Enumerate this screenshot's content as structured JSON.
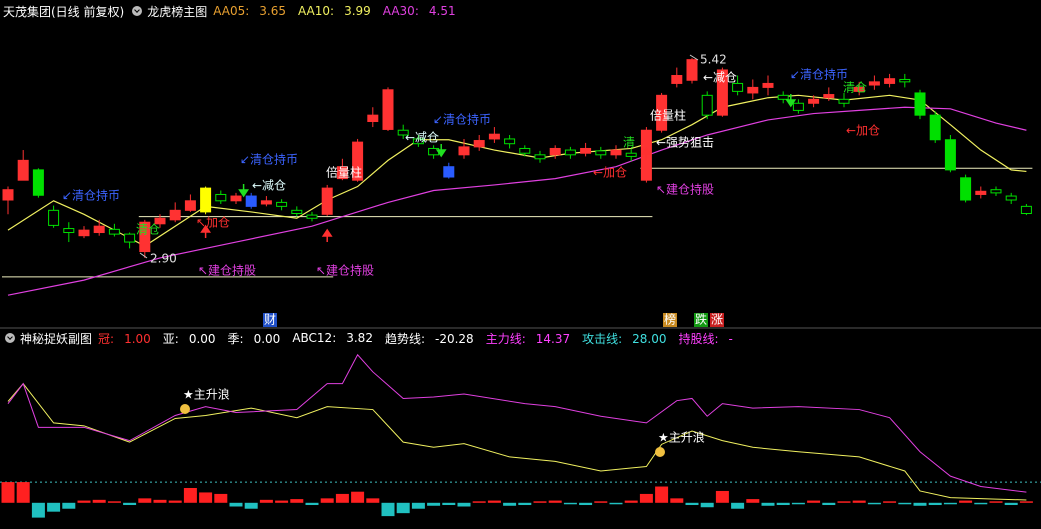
{
  "header": {
    "stock": "天茂集团(日线 前复权)"
  },
  "chart_data": [
    {
      "type": "candlestick",
      "title": "龙虎榜主图",
      "open": [
        3.63,
        3.88,
        4.01,
        3.5,
        3.27,
        3.18,
        3.22,
        3.26,
        3.2,
        2.98,
        3.33,
        3.38,
        3.5,
        3.48,
        3.7,
        3.62,
        3.68,
        3.58,
        3.6,
        3.5,
        3.44,
        3.45,
        3.9,
        3.88,
        4.62,
        4.52,
        4.51,
        4.4,
        4.28,
        4.05,
        4.2,
        4.3,
        4.4,
        4.4,
        4.28,
        4.2,
        4.2,
        4.26,
        4.22,
        4.25,
        4.2,
        4.22,
        3.88,
        4.51,
        5.1,
        5.14,
        4.95,
        4.7,
        5.1,
        4.98,
        5.05,
        4.95,
        4.85,
        4.85,
        4.92,
        4.9,
        5.0,
        5.08,
        5.1,
        5.15,
        4.98,
        4.7,
        4.39,
        3.91,
        3.7,
        3.76,
        3.68,
        3.55
      ],
      "high": [
        3.8,
        4.26,
        4.03,
        3.56,
        3.35,
        3.3,
        3.38,
        3.33,
        3.22,
        3.38,
        3.45,
        3.6,
        3.7,
        3.8,
        3.75,
        3.72,
        3.72,
        3.68,
        3.64,
        3.55,
        3.48,
        3.82,
        4.15,
        4.4,
        4.8,
        5.05,
        4.58,
        4.45,
        4.32,
        4.1,
        4.4,
        4.45,
        4.55,
        4.45,
        4.32,
        4.25,
        4.32,
        4.3,
        4.35,
        4.3,
        4.32,
        4.28,
        4.55,
        4.98,
        5.3,
        5.42,
        5.0,
        5.3,
        5.2,
        5.15,
        5.2,
        5.0,
        4.9,
        4.95,
        5.05,
        4.98,
        5.12,
        5.2,
        5.22,
        5.22,
        5.02,
        4.75,
        4.45,
        3.95,
        3.8,
        3.8,
        3.72,
        3.58
      ],
      "low": [
        3.45,
        3.88,
        3.66,
        3.28,
        3.1,
        3.15,
        3.18,
        3.17,
        3.02,
        2.9,
        3.28,
        3.35,
        3.48,
        3.45,
        3.58,
        3.58,
        3.52,
        3.55,
        3.5,
        3.42,
        3.36,
        3.43,
        3.88,
        3.86,
        4.55,
        4.5,
        4.4,
        4.3,
        4.15,
        3.9,
        4.15,
        4.25,
        4.35,
        4.28,
        4.18,
        4.1,
        4.15,
        4.15,
        4.18,
        4.15,
        4.15,
        4.12,
        3.85,
        4.48,
        5.05,
        5.1,
        4.65,
        4.68,
        4.95,
        4.9,
        4.95,
        4.85,
        4.72,
        4.8,
        4.88,
        4.8,
        4.95,
        5.02,
        5.05,
        5.05,
        4.65,
        4.35,
        3.98,
        3.6,
        3.65,
        3.68,
        3.58,
        3.44
      ],
      "close": [
        3.76,
        4.13,
        3.69,
        3.31,
        3.22,
        3.25,
        3.3,
        3.2,
        3.1,
        3.35,
        3.4,
        3.5,
        3.62,
        3.78,
        3.62,
        3.68,
        3.55,
        3.62,
        3.55,
        3.46,
        3.4,
        3.78,
        4.05,
        4.36,
        4.7,
        5.02,
        4.45,
        4.34,
        4.2,
        3.92,
        4.3,
        4.38,
        4.46,
        4.34,
        4.22,
        4.15,
        4.28,
        4.2,
        4.28,
        4.2,
        4.26,
        4.18,
        4.51,
        4.95,
        5.2,
        5.4,
        4.7,
        5.27,
        5.0,
        5.05,
        5.1,
        4.9,
        4.76,
        4.9,
        4.96,
        4.85,
        5.05,
        5.12,
        5.16,
        5.12,
        4.7,
        4.39,
        4.01,
        3.63,
        3.74,
        3.72,
        3.63,
        3.46
      ],
      "up_color": "#ff3232",
      "down_color": "#00e000",
      "highlights": [
        {
          "index": 13,
          "color": "#ffff00"
        },
        {
          "index": 16,
          "color": "#2a5cff"
        },
        {
          "index": 29,
          "color": "#2a5cff"
        }
      ],
      "ylim": [
        2.18,
        5.9
      ],
      "series": [
        {
          "name": "AA05:",
          "color": "#e8a030",
          "current": 3.65
        },
        {
          "name": "AA10:",
          "color": "#f0f060",
          "current": 3.99,
          "x": [
            0,
            3,
            5,
            9,
            13,
            16,
            19,
            21,
            23,
            25,
            27,
            29,
            32,
            35,
            37,
            41,
            43,
            45,
            47,
            50,
            52,
            55,
            58,
            60,
            62,
            64,
            66,
            67
          ],
          "values": [
            3.25,
            3.62,
            3.45,
            3.05,
            3.55,
            3.48,
            3.4,
            3.63,
            3.8,
            4.13,
            4.39,
            4.39,
            4.26,
            4.16,
            4.22,
            4.28,
            4.39,
            4.58,
            4.8,
            4.92,
            4.95,
            4.89,
            4.95,
            4.89,
            4.58,
            4.26,
            4.01,
            3.99
          ]
        },
        {
          "name": "AA30:",
          "color": "#e040e0",
          "current": 4.51,
          "x": [
            0,
            5,
            10,
            15,
            20,
            25,
            28,
            32,
            36,
            40,
            43,
            46,
            50,
            53,
            56,
            59,
            62,
            65,
            67
          ],
          "values": [
            2.43,
            2.62,
            2.9,
            3.1,
            3.3,
            3.6,
            3.75,
            3.82,
            3.9,
            4.05,
            4.26,
            4.45,
            4.64,
            4.72,
            4.76,
            4.8,
            4.78,
            4.6,
            4.51
          ]
        }
      ],
      "levels": [
        {
          "value": 2.66,
          "from": 0,
          "to": 21
        },
        {
          "value": 3.42,
          "from": 9,
          "to": 42
        },
        {
          "value": 4.03,
          "from": 42,
          "to": 67
        }
      ],
      "level_color": "#f0f0c0",
      "annotations": [
        {
          "text": "↙清仓持币",
          "color": "#3c64ff"
        },
        {
          "text": "↙清仓持币",
          "color": "#3c64ff"
        },
        {
          "text": "↙清仓持币",
          "color": "#3c64ff"
        },
        {
          "text": "↙清仓持币",
          "color": "#3c64ff"
        },
        {
          "text": "清仓",
          "color": "#20e020"
        },
        {
          "text": "清",
          "color": "#20e020"
        },
        {
          "text": "清仓",
          "color": "#20e020"
        },
        {
          "text": "↖加仓",
          "color": "#ff3030"
        },
        {
          "text": "←加仓",
          "color": "#ff3030"
        },
        {
          "text": "←加仓",
          "color": "#ff3030"
        },
        {
          "text": "←减仓",
          "color": "#e0ffff"
        },
        {
          "text": "←减仓",
          "color": "#e0ffff"
        },
        {
          "text": "←减仓",
          "color": "#ffffff"
        },
        {
          "text": "倍量柱",
          "color": "#ffffff"
        },
        {
          "text": "倍量柱",
          "color": "#ffffff"
        },
        {
          "text": "←强势狙击",
          "color": "#ffffff"
        },
        {
          "text": "↖建仓持股",
          "color": "#e040e0"
        },
        {
          "text": "↖建仓持股",
          "color": "#e040e0"
        },
        {
          "text": "↖建仓持股",
          "color": "#e040e0"
        },
        {
          "text": "2.90",
          "color": "#e0e0e0"
        },
        {
          "text": "5.42",
          "color": "#e0e0e0"
        }
      ],
      "markers": [
        {
          "text": "财",
          "color": "#2050c8"
        },
        {
          "text": "榜",
          "color": "#c88a20"
        },
        {
          "text": "跌",
          "color": "#129a12"
        },
        {
          "text": "涨",
          "color": "#c82020"
        }
      ]
    },
    {
      "type": "indicator",
      "title": "神秘捉妖副图",
      "ylim": [
        -30,
        220
      ],
      "items": [
        {
          "name": "冠:",
          "value": 1,
          "label": "1.00",
          "color": "#ff3030"
        },
        {
          "name": "亚:",
          "value": 0,
          "label": "0.00",
          "color": "#ffffff"
        },
        {
          "name": "季:",
          "value": 0,
          "label": "0.00",
          "color": "#ffffff"
        },
        {
          "name": "ABC12:",
          "value": 3.82,
          "color": "#ffffff"
        },
        {
          "name": "趋势线:",
          "value": -20.28,
          "color": "#ffffff"
        },
        {
          "name": "主力线:",
          "value": 14.37,
          "color": "#ff40ff"
        },
        {
          "name": "攻击线:",
          "value": 28,
          "label": "28.00",
          "color": "#40e0e0"
        },
        {
          "name": "持股线:",
          "value": null,
          "label": "-",
          "color": "#ff40ff"
        }
      ],
      "lines": [
        {
          "color": "#f0f060",
          "x": [
            0,
            1,
            3,
            5,
            8,
            11,
            13,
            16,
            19,
            21,
            24,
            26,
            28,
            30,
            33,
            36,
            39,
            42,
            43,
            45,
            47,
            49,
            52,
            56,
            59,
            60,
            62,
            65,
            67
          ],
          "values": [
            137,
            161,
            108,
            104,
            82,
            114,
            118,
            128,
            115,
            130,
            126,
            82,
            75,
            80,
            62,
            56,
            43,
            49,
            79,
            97,
            84,
            75,
            69,
            62,
            43,
            16,
            7,
            5,
            3.82
          ]
        },
        {
          "color": "#e040e0",
          "x": [
            0,
            1,
            2,
            5,
            8,
            11,
            13,
            15,
            19,
            21,
            22,
            23,
            24,
            26,
            28,
            30,
            34,
            36,
            39,
            42,
            44,
            45,
            46,
            47,
            49,
            52,
            56,
            58,
            60,
            62,
            64,
            67
          ],
          "values": [
            134,
            161,
            102,
            102,
            84,
            118,
            130,
            122,
            126,
            161,
            161,
            200,
            177,
            141,
            143,
            147,
            134,
            130,
            117,
            108,
            138,
            141,
            117,
            134,
            128,
            130,
            126,
            115,
            69,
            36,
            22,
            14.37
          ]
        }
      ],
      "bars": [
        28,
        28,
        -20,
        -12,
        -8,
        3,
        4,
        2,
        -3,
        6,
        4,
        3,
        20,
        14,
        12,
        -5,
        -8,
        4,
        3,
        5,
        -3,
        6,
        12,
        15,
        6,
        -18,
        -14,
        -8,
        -4,
        -3,
        -5,
        2,
        3,
        -4,
        -3,
        2,
        3,
        -2,
        -3,
        2,
        -2,
        3,
        12,
        22,
        6,
        -3,
        -6,
        16,
        -8,
        5,
        -4,
        -3,
        -2,
        3,
        -3,
        2,
        3,
        -2,
        2,
        -2,
        -4,
        -3,
        -2,
        3,
        -2,
        2,
        -3,
        2
      ],
      "bar_up_color": "#ff2020",
      "bar_down_color": "#20c0c0",
      "annotations": [
        {
          "text": "★主升浪",
          "color": "#ffffff"
        },
        {
          "text": "★主升浪",
          "color": "#ffffff"
        }
      ]
    }
  ]
}
